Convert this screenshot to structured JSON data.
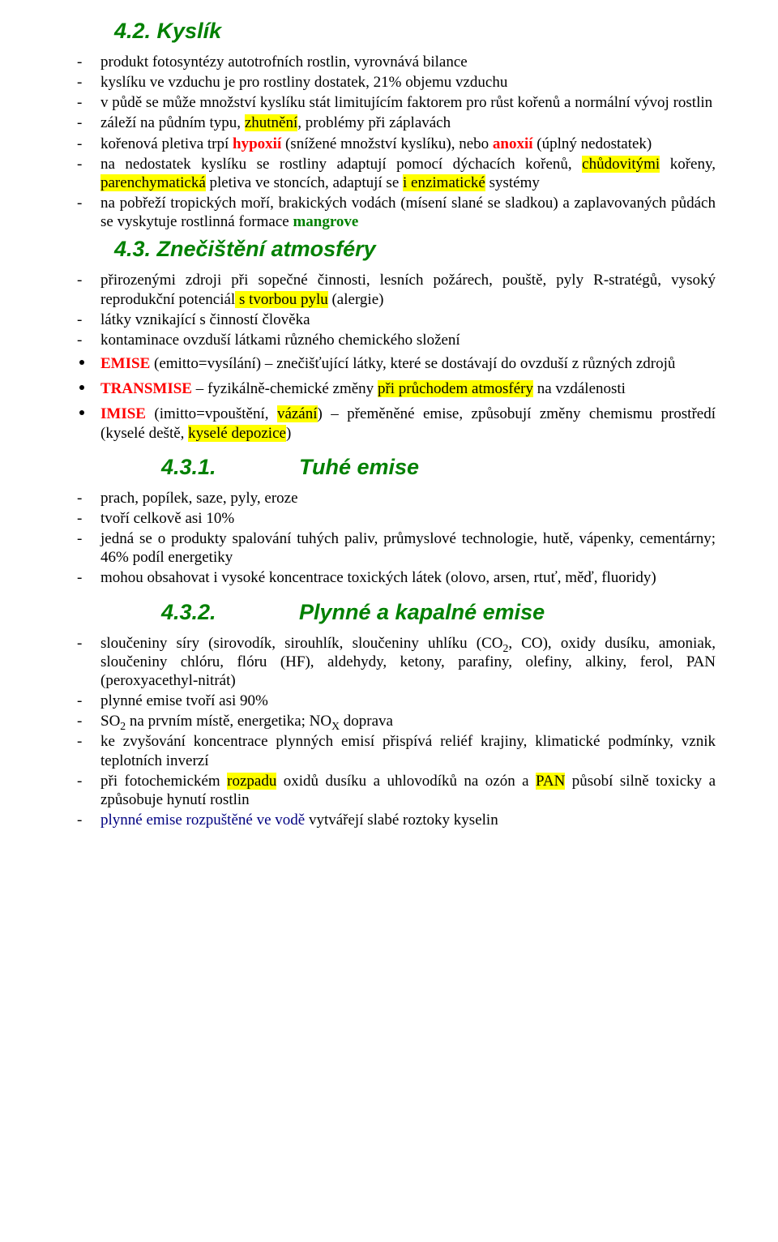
{
  "colors": {
    "heading": "#008000",
    "body": "#000000",
    "term_red": "#ff0000",
    "term_green": "#008000",
    "term_navy": "#000080",
    "highlight": "#ffff00",
    "background": "#ffffff"
  },
  "fonts": {
    "heading_family": "Arial",
    "heading_size_pt": 20,
    "body_family": "Times New Roman",
    "body_size_pt": 14
  },
  "h_42": "4.2. Kyslík",
  "s42": {
    "i0a": "produkt fotosyntézy autotrofních rostlin, vyrovnává bilance",
    "i1a": "kyslíku ve vzduchu je pro rostliny dostatek, 21% objemu vzduchu",
    "i2a": "v půdě se může množství kyslíku stát limitujícím faktorem pro růst kořenů a normální vývoj rostlin",
    "i3a": "záleží na půdním typu, ",
    "i3b": "zhutnění",
    "i3c": ", problémy při záplavách",
    "i4a": "kořenová pletiva trpí ",
    "i4b": "hypoxií",
    "i4c": " (snížené množství kyslíku), nebo ",
    "i4d": "anoxií",
    "i4e": " (úplný nedostatek)",
    "i5a": "na nedostatek kyslíku se rostliny adaptují pomocí dýchacích kořenů, ",
    "i5b": "chůdovitými",
    "i5c": " kořeny, ",
    "i5d": "parenchymatická",
    "i5e": " pletiva ve stoncích, adaptují se ",
    "i5f": "i enzimatické",
    "i5g": " systémy",
    "i6a": "na pobřeží tropických moří, brakických vodách (mísení slané se sladkou) a zaplavovaných půdách se vyskytuje rostlinná formace  ",
    "i6b": "mangrove"
  },
  "h_43": "4.3. Znečištění atmosféry",
  "s43": {
    "i0a": "přirozenými zdroji při sopečné činnosti, lesních požárech, pouště, pyly R-stratégů, vysoký reprodukční potenciál",
    "i0b": " s tvorbou pylu",
    "i0c": " (alergie)",
    "i1a": "látky vznikající s činností člověka",
    "i2a": "kontaminace ovzduší látkami různého chemického složení",
    "b0a": "EMISE",
    "b0b": " (emitto=vysílání) – znečišťující látky, které se dostávají do ovzduší z různých zdrojů",
    "b1a": "TRANSMISE",
    "b1b": " – fyzikálně-chemické změny ",
    "b1c": "při průchodem atmosféry",
    "b1d": " na vzdálenosti",
    "b2a": "IMISE",
    "b2b": " (imitto=vpouštění, ",
    "b2c": "vázání",
    "b2d": ") – přeměněné emise, způsobují změny chemismu prostředí (kyselé deště, ",
    "b2e": "kyselé depozice",
    "b2f": ")"
  },
  "h_431_num": "4.3.1.",
  "h_431_txt": "Tuhé emise",
  "s431": {
    "i0a": "prach, popílek, saze, pyly, eroze",
    "i1a": "tvoří celkově asi 10%",
    "i2a": "jedná se o produkty spalování tuhých paliv, průmyslové technologie, hutě, vápenky, cementárny; 46% podíl energetiky",
    "i3a": "mohou obsahovat i vysoké koncentrace toxických látek (olovo, arsen, rtuť, měď, fluoridy)"
  },
  "h_432_num": "4.3.2.",
  "h_432_txt": "Plynné a kapalné emise",
  "s432": {
    "i0a": "sloučeniny síry (sirovodík, sirouhlík, sloučeniny uhlíku (CO",
    "i0b": ", CO), oxidy dusíku, amoniak, sloučeniny chlóru, flóru (HF), aldehydy, ketony, parafiny, olefiny, alkiny, ferol, PAN (peroxyacethyl-nitrát)",
    "i1a": "plynné emise tvoří asi 90%",
    "i2a": "SO",
    "i2b": " na prvním místě, energetika; NO",
    "i2c": " doprava",
    "i3a": "ke zvyšování koncentrace plynných emisí přispívá reliéf krajiny, klimatické podmínky, vznik teplotních inverzí",
    "i4a": "při fotochemickém ",
    "i4b": "rozpadu",
    "i4c": " oxidů dusíku a uhlovodíků na ozón a ",
    "i4d": "PAN",
    "i4e": " působí silně toxicky a způsobuje hynutí rostlin",
    "i5a": "plynné emise rozpuštěné ve vodě",
    "i5b": " vytvářejí slabé roztoky kyselin"
  },
  "subs": {
    "two": "2",
    "x": "X"
  }
}
